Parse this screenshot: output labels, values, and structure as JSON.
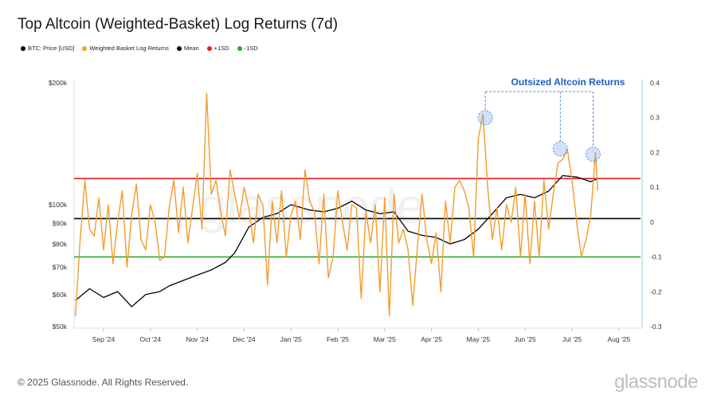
{
  "title": "Top Altcoin (Weighted-Basket) Log Returns (7d)",
  "legend": [
    {
      "label": "BTC: Price [USD]",
      "color": "#000000"
    },
    {
      "label": "Weighted Basket Log Returns",
      "color": "#f5a623"
    },
    {
      "label": "Mean",
      "color": "#000000"
    },
    {
      "label": "+1SD",
      "color": "#e02020"
    },
    {
      "label": "-1SD",
      "color": "#2ea82e"
    }
  ],
  "footer": "© 2025 Glassnode. All Rights Reserved.",
  "brand": "glassnode",
  "watermark": "glassnode",
  "annotation": "Outsized Altcoin Returns",
  "chart_data": {
    "type": "line",
    "x_labels": [
      "Sep '24",
      "Oct '24",
      "Nov '24",
      "Dec '24",
      "Jan '25",
      "Feb '25",
      "Mar '25",
      "Apr '25",
      "May '25",
      "Jun '25",
      "Jul '25",
      "Aug '25"
    ],
    "y_left": {
      "scale": "log",
      "range": [
        50000,
        200000
      ],
      "ticks": [
        {
          "v": 200000,
          "label": "$200k"
        },
        {
          "v": 100000,
          "label": "$100k"
        },
        {
          "v": 90000,
          "label": "$90k"
        },
        {
          "v": 80000,
          "label": "$80k"
        },
        {
          "v": 70000,
          "label": "$70k"
        },
        {
          "v": 60000,
          "label": "$60k"
        },
        {
          "v": 50000,
          "label": "$50k"
        }
      ]
    },
    "y_right": {
      "range": [
        -0.3,
        0.4
      ],
      "ticks": [
        {
          "v": 0.4,
          "label": "0.4"
        },
        {
          "v": 0.3,
          "label": "0.3"
        },
        {
          "v": 0.2,
          "label": "0.2"
        },
        {
          "v": 0.1,
          "label": "0.1"
        },
        {
          "v": 0,
          "label": "0"
        },
        {
          "v": -0.1,
          "label": "-0.1"
        },
        {
          "v": -0.2,
          "label": "-0.2"
        },
        {
          "v": -0.3,
          "label": "-0.3"
        }
      ]
    },
    "series": [
      {
        "name": "BTC: Price [USD]",
        "axis": "left",
        "color": "#000000",
        "t": [
          0,
          0.3,
          0.6,
          0.9,
          1.2,
          1.5,
          1.8,
          2.0,
          2.3,
          2.6,
          2.9,
          3.2,
          3.4,
          3.7,
          4.0,
          4.3,
          4.6,
          5.0,
          5.3,
          5.6,
          5.9,
          6.2,
          6.5,
          6.8,
          7.1,
          7.4,
          7.7,
          8.0,
          8.3,
          8.6,
          8.9,
          9.2,
          9.5,
          9.8,
          10.1,
          10.4,
          10.7,
          11.0,
          11.15
        ],
        "values": [
          58000,
          62000,
          59000,
          61000,
          56000,
          60000,
          61000,
          63000,
          65000,
          67000,
          69000,
          72000,
          76000,
          88000,
          93000,
          95000,
          100000,
          97000,
          96000,
          98000,
          102000,
          97000,
          95000,
          96000,
          86000,
          84000,
          83000,
          80000,
          82000,
          87000,
          95000,
          104000,
          106000,
          104000,
          108000,
          118000,
          117000,
          114000,
          116000
        ]
      },
      {
        "name": "Weighted Basket Log Returns",
        "axis": "right",
        "color": "#f39c2c",
        "t": [
          0,
          0.1,
          0.2,
          0.3,
          0.4,
          0.5,
          0.6,
          0.7,
          0.8,
          0.9,
          1.0,
          1.1,
          1.2,
          1.3,
          1.4,
          1.5,
          1.6,
          1.7,
          1.8,
          1.9,
          2.0,
          2.1,
          2.2,
          2.3,
          2.4,
          2.5,
          2.6,
          2.7,
          2.8,
          2.9,
          3.0,
          3.1,
          3.2,
          3.3,
          3.4,
          3.5,
          3.6,
          3.7,
          3.8,
          3.9,
          4.0,
          4.1,
          4.2,
          4.3,
          4.4,
          4.5,
          4.6,
          4.7,
          4.8,
          4.9,
          5.0,
          5.1,
          5.2,
          5.3,
          5.4,
          5.5,
          5.6,
          5.7,
          5.8,
          5.9,
          6.0,
          6.1,
          6.2,
          6.3,
          6.4,
          6.5,
          6.6,
          6.7,
          6.8,
          6.9,
          7.0,
          7.1,
          7.2,
          7.3,
          7.4,
          7.5,
          7.6,
          7.7,
          7.8,
          7.9,
          8.0,
          8.1,
          8.2,
          8.3,
          8.4,
          8.5,
          8.6,
          8.7,
          8.8,
          8.9,
          9.0,
          9.1,
          9.2,
          9.3,
          9.4,
          9.5,
          9.6,
          9.7,
          9.8,
          9.9,
          10.0,
          10.1,
          10.2,
          10.3,
          10.4,
          10.5,
          10.6,
          10.7,
          10.8,
          10.9,
          11.0,
          11.1,
          11.15
        ],
        "values": [
          -0.27,
          -0.05,
          0.12,
          -0.02,
          -0.04,
          0.07,
          -0.08,
          0.05,
          -0.12,
          0.0,
          0.09,
          -0.13,
          0.02,
          0.11,
          -0.05,
          -0.08,
          0.05,
          0.0,
          -0.11,
          -0.1,
          0.04,
          0.12,
          -0.03,
          0.1,
          -0.06,
          0.04,
          0.14,
          -0.02,
          0.37,
          0.08,
          0.12,
          0.03,
          -0.04,
          0.15,
          0.08,
          0.01,
          0.1,
          0.04,
          -0.06,
          0.08,
          0.05,
          -0.18,
          0.06,
          -0.06,
          0.09,
          -0.1,
          0.02,
          0.06,
          -0.05,
          0.15,
          0.06,
          0.03,
          -0.12,
          0.08,
          -0.16,
          -0.1,
          0.09,
          0.0,
          -0.08,
          0.05,
          0.04,
          -0.22,
          0.03,
          -0.06,
          0.05,
          -0.2,
          0.07,
          -0.27,
          0.08,
          -0.06,
          -0.02,
          -0.08,
          -0.24,
          -0.07,
          0.08,
          -0.05,
          -0.12,
          -0.03,
          -0.2,
          0.06,
          -0.06,
          0.1,
          0.12,
          0.09,
          0.04,
          -0.1,
          0.24,
          0.31,
          0.1,
          -0.05,
          0.04,
          -0.08,
          0.05,
          0.0,
          0.1,
          -0.1,
          0.08,
          -0.12,
          0.06,
          -0.1,
          0.12,
          -0.02,
          0.08,
          0.17,
          0.18,
          0.21,
          0.12,
          0.0,
          -0.1,
          -0.05,
          0.02,
          0.2,
          0.09
        ]
      },
      {
        "name": "Mean",
        "axis": "right",
        "color": "#000000",
        "value": 0.01
      },
      {
        "name": "+1SD",
        "axis": "right",
        "color": "#e02020",
        "value": 0.125
      },
      {
        "name": "-1SD",
        "axis": "right",
        "color": "#2ea82e",
        "value": -0.1
      }
    ],
    "highlight_points": [
      {
        "t": 8.75,
        "value": 0.3
      },
      {
        "t": 10.35,
        "value": 0.21
      },
      {
        "t": 11.05,
        "value": 0.195
      }
    ]
  }
}
